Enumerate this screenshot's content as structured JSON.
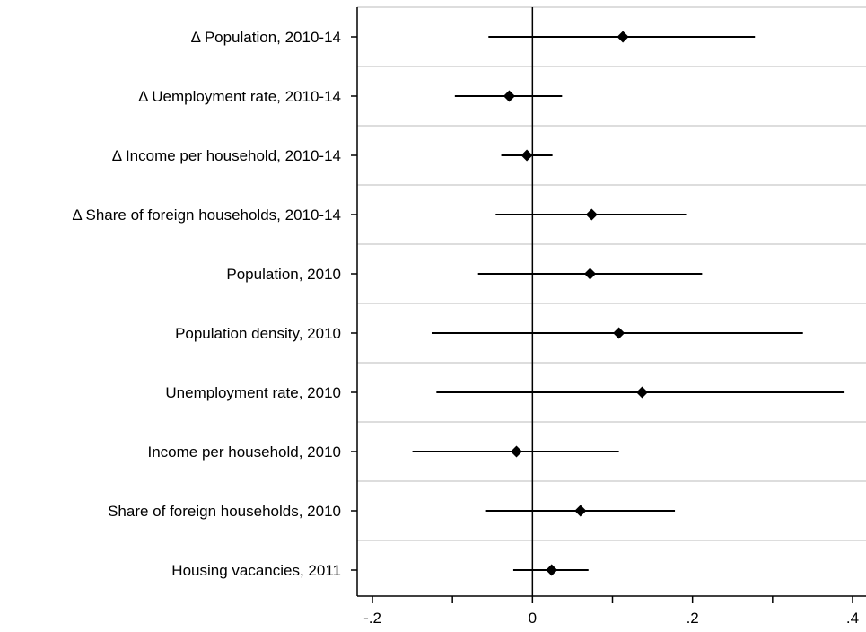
{
  "chart_data": {
    "type": "scatter",
    "subtype": "coefficient-plot",
    "title": "",
    "xlabel": "",
    "ylabel": "",
    "xlim": [
      -0.2,
      0.4
    ],
    "x_ticks": [
      -0.2,
      0,
      0.2,
      0.4
    ],
    "x_tick_labels": [
      "-.2",
      "0",
      ".2",
      ".4"
    ],
    "x_minor_ticks": [
      -0.1,
      0.1,
      0.3
    ],
    "reference_line_x": 0,
    "grid": "horizontal",
    "legend": "none",
    "colors": {
      "marker": "#000000",
      "interval": "#000000",
      "reference_line": "#000000",
      "grid": "#dddddd",
      "axis": "#000000"
    },
    "categories": [
      "Δ Population, 2010-14",
      "Δ Uemployment rate, 2010-14",
      "Δ Income per household, 2010-14",
      "Δ Share of foreign households, 2010-14",
      "Population, 2010",
      "Population density, 2010",
      "Unemployment rate, 2010",
      "Income per household, 2010",
      "Share of foreign households, 2010",
      "Housing vacancies, 2011"
    ],
    "estimates": [
      0.113,
      -0.029,
      -0.007,
      0.074,
      0.072,
      0.108,
      0.137,
      -0.02,
      0.06,
      0.024
    ],
    "ci_low": [
      -0.055,
      -0.097,
      -0.039,
      -0.046,
      -0.068,
      -0.126,
      -0.12,
      -0.15,
      -0.058,
      -0.024
    ],
    "ci_high": [
      0.278,
      0.037,
      0.025,
      0.192,
      0.212,
      0.338,
      0.39,
      0.108,
      0.178,
      0.07
    ]
  }
}
